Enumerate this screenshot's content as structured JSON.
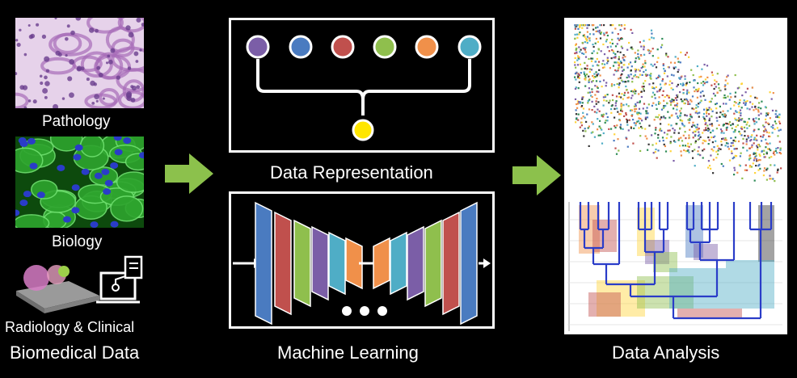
{
  "left_column": {
    "pathology_label": "Pathology",
    "biology_label": "Biology",
    "radiology_label": "Radiology & Clinical",
    "footer_label": "Biomedical Data"
  },
  "center_column": {
    "representation_label": "Data Representation",
    "ml_label": "Machine Learning",
    "node_colors": [
      "#7b5ea7",
      "#4a7bc0",
      "#c0504d",
      "#8fbf4d",
      "#f0904a",
      "#4fadc6"
    ],
    "output_node_color": "#ffe600",
    "layer_colors": [
      "#4a7bc0",
      "#c0504d",
      "#8fbf4d",
      "#7b5ea7",
      "#4fadc6",
      "#f0904a"
    ],
    "decoder_colors": [
      "#f0904a",
      "#4fadc6",
      "#7b5ea7",
      "#8fbf4d",
      "#c0504d",
      "#4a7bc0"
    ]
  },
  "right_column": {
    "analysis_label": "Data Analysis"
  },
  "arrows": {
    "color": "#8cc14c"
  }
}
